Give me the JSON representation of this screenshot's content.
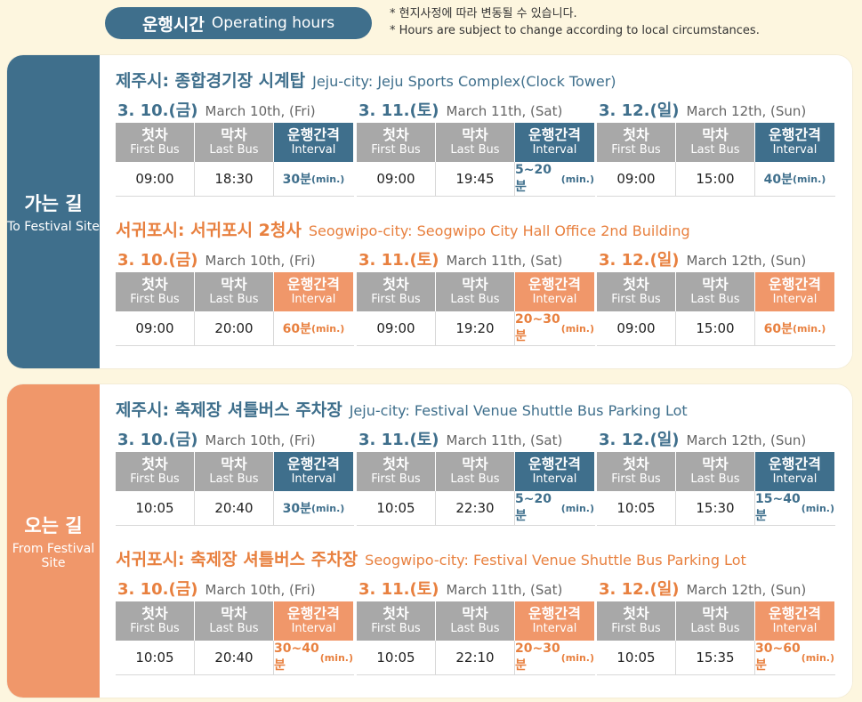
{
  "header": {
    "title_ko": "운행시간",
    "title_en": "Operating hours",
    "note_ko": "* 현지사정에 따라 변동될 수 있습니다.",
    "note_en": "* Hours are subject to change according to local circumstances."
  },
  "headers": {
    "first_ko": "첫차",
    "first_en": "First Bus",
    "last_ko": "막차",
    "last_en": "Last Bus",
    "interval_ko": "운행간격",
    "interval_en": "Interval",
    "unit": "(min.)"
  },
  "colors": {
    "blue": "#3f6f8c",
    "orange": "#f0976a",
    "gray": "#a8a8a8",
    "background": "#fdf6df"
  },
  "sections": [
    {
      "label_ko": "가는 길",
      "label_en": "To Festival Site",
      "routes": [
        {
          "title_ko": "제주시: 종합경기장 시계탑",
          "title_en": "Jeju-city: Jeju Sports Complex(Clock Tower)",
          "theme": "blue",
          "days": [
            {
              "label_ko": "3. 10.(금)",
              "label_en": "March 10th, (Fri)",
              "first": "09:00",
              "last": "18:30",
              "interval": "30분"
            },
            {
              "label_ko": "3. 11.(토)",
              "label_en": "March 11th, (Sat)",
              "first": "09:00",
              "last": "19:45",
              "interval": "5~20분"
            },
            {
              "label_ko": "3. 12.(일)",
              "label_en": "March 12th, (Sun)",
              "first": "09:00",
              "last": "15:00",
              "interval": "40분"
            }
          ]
        },
        {
          "title_ko": "서귀포시: 서귀포시 2청사",
          "title_en": "Seogwipo-city: Seogwipo City Hall Office 2nd Building",
          "theme": "orange",
          "days": [
            {
              "label_ko": "3. 10.(금)",
              "label_en": "March 10th, (Fri)",
              "first": "09:00",
              "last": "20:00",
              "interval": "60분"
            },
            {
              "label_ko": "3. 11.(토)",
              "label_en": "March 11th, (Sat)",
              "first": "09:00",
              "last": "19:20",
              "interval": "20~30분"
            },
            {
              "label_ko": "3. 12.(일)",
              "label_en": "March 12th, (Sun)",
              "first": "09:00",
              "last": "15:00",
              "interval": "60분"
            }
          ]
        }
      ]
    },
    {
      "label_ko": "오는 길",
      "label_en": "From Festival Site",
      "routes": [
        {
          "title_ko": "제주시: 축제장 셔틀버스 주차장",
          "title_en": "Jeju-city: Festival Venue Shuttle Bus Parking Lot",
          "theme": "blue",
          "days": [
            {
              "label_ko": "3. 10.(금)",
              "label_en": "March 10th, (Fri)",
              "first": "10:05",
              "last": "20:40",
              "interval": "30분"
            },
            {
              "label_ko": "3. 11.(토)",
              "label_en": "March 11th, (Sat)",
              "first": "10:05",
              "last": "22:30",
              "interval": "5~20분"
            },
            {
              "label_ko": "3. 12.(일)",
              "label_en": "March 12th, (Sun)",
              "first": "10:05",
              "last": "15:30",
              "interval": "15~40분"
            }
          ]
        },
        {
          "title_ko": "서귀포시: 축제장 셔틀버스 주차장",
          "title_en": "Seogwipo-city: Festival Venue Shuttle Bus Parking Lot",
          "theme": "orange",
          "days": [
            {
              "label_ko": "3. 10.(금)",
              "label_en": "March 10th, (Fri)",
              "first": "10:05",
              "last": "20:40",
              "interval": "30~40분"
            },
            {
              "label_ko": "3. 11.(토)",
              "label_en": "March 11th, (Sat)",
              "first": "10:05",
              "last": "22:10",
              "interval": "20~30분"
            },
            {
              "label_ko": "3. 12.(일)",
              "label_en": "March 12th, (Sun)",
              "first": "10:05",
              "last": "15:35",
              "interval": "30~60분"
            }
          ]
        }
      ]
    }
  ]
}
